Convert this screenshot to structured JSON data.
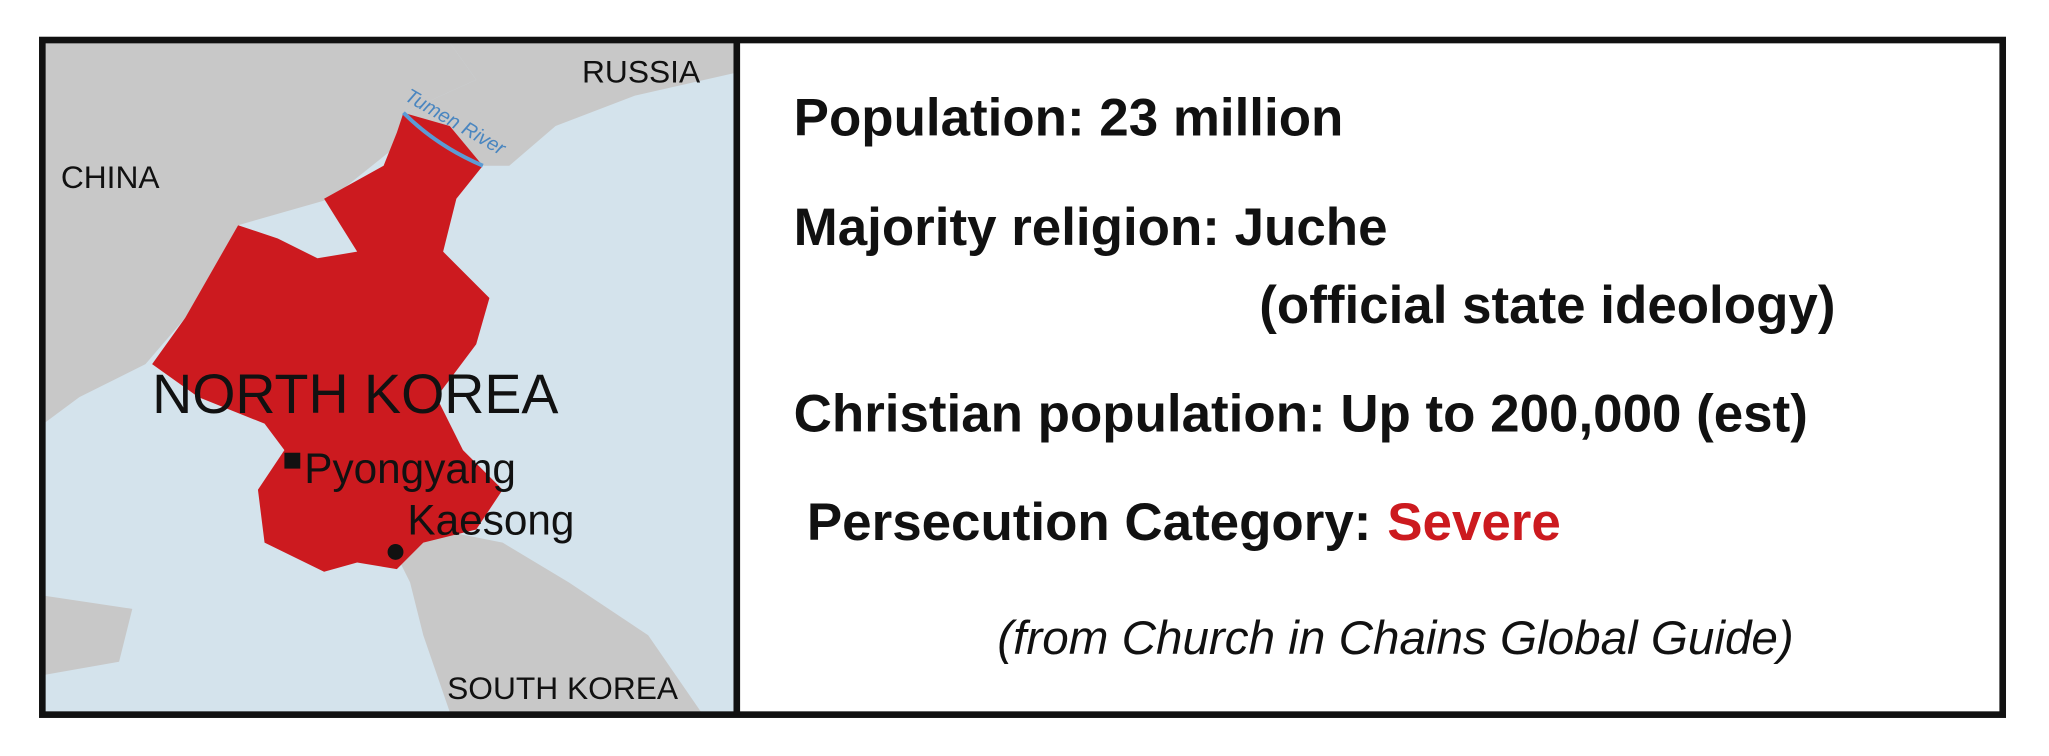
{
  "map": {
    "labels": {
      "russia": "RUSSIA",
      "china": "CHINA",
      "river": "Tumen River",
      "country": "NORTH KOREA",
      "capital": "Pyongyang",
      "city": "Kaesong",
      "south": "SOUTH KOREA"
    }
  },
  "facts": {
    "population": "Population: 23 million",
    "religion": "Majority religion: Juche",
    "religion_note": "(official state ideology)",
    "christians": "Christian population: Up to 200,000 (est)",
    "category_label": "Persecution Category:",
    "category": "Severe",
    "source": "(from Church in Chains Global Guide)"
  }
}
